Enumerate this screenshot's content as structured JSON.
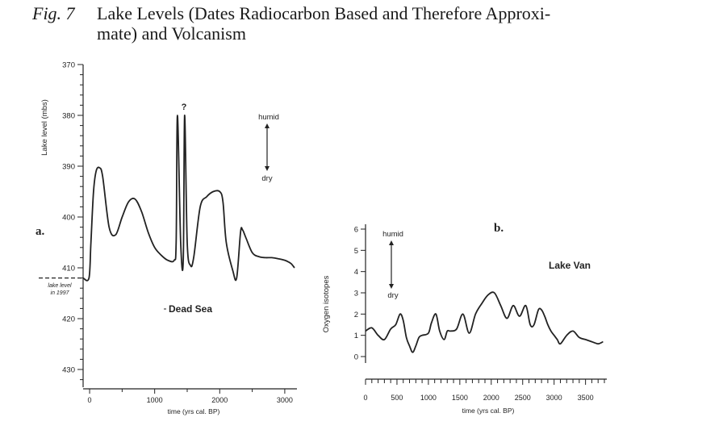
{
  "caption": {
    "figure_label": "Fig. 7",
    "title_line1": "Lake Levels (Dates Radiocarbon Based and Therefore Approxi-",
    "title_line2": "mate) and Volcanism"
  },
  "chart_data": [
    {
      "type": "line",
      "panel_label": "a.",
      "series_name": "Dead Sea",
      "xlabel": "time (yrs cal. BP)",
      "ylabel": "Lake level (mbs)",
      "xlim": [
        -100,
        3150
      ],
      "ylim": [
        370,
        431
      ],
      "y_inverted": true,
      "x_ticks": [
        "0",
        "1000",
        "2000",
        "3000"
      ],
      "y_ticks": [
        "370",
        "380",
        "390",
        "400",
        "410",
        "420",
        "430"
      ],
      "reference_line": {
        "label_line1": "lake level",
        "label_line2": "in 1997",
        "y": 412
      },
      "annotations": {
        "question": "?",
        "humid": "humid",
        "dry": "dry"
      },
      "x": [
        -100,
        -10,
        20,
        60,
        100,
        150,
        200,
        300,
        400,
        500,
        600,
        700,
        800,
        900,
        1000,
        1100,
        1200,
        1300,
        1330,
        1350,
        1400,
        1440,
        1460,
        1500,
        1550,
        1600,
        1700,
        1800,
        1900,
        2000,
        2050,
        2100,
        2200,
        2260,
        2320,
        2350,
        2400,
        2500,
        2600,
        2700,
        2800,
        2900,
        3000,
        3050,
        3100,
        3150
      ],
      "y": [
        412,
        412,
        405,
        395,
        391,
        390.3,
        392,
        402,
        403.5,
        400,
        397,
        396.5,
        399,
        403,
        406,
        407.5,
        408.5,
        408.5,
        405,
        380,
        405,
        408.5,
        380,
        405,
        409.5,
        408,
        398,
        396,
        395,
        395,
        397,
        405,
        410.5,
        412,
        403,
        402.5,
        404,
        407,
        407.8,
        408,
        408,
        408.2,
        408.5,
        408.8,
        409.2,
        410
      ]
    },
    {
      "type": "line",
      "panel_label": "b.",
      "series_name": "Lake Van",
      "xlabel": "time (yrs cal. BP)",
      "ylabel": "Oxygen isotopes",
      "xlim": [
        0,
        3800
      ],
      "ylim": [
        -1,
        6.2
      ],
      "x_ticks": [
        "0",
        "500",
        "1000",
        "1500",
        "2000",
        "2500",
        "3000",
        "3500"
      ],
      "y_ticks": [
        "0",
        "1",
        "2",
        "3",
        "4",
        "5",
        "6"
      ],
      "annotations": {
        "humid": "humid",
        "dry": "dry"
      },
      "x": [
        0,
        100,
        200,
        300,
        400,
        480,
        550,
        600,
        650,
        700,
        750,
        800,
        850,
        900,
        1000,
        1050,
        1120,
        1180,
        1250,
        1300,
        1350,
        1450,
        1550,
        1650,
        1750,
        1850,
        1950,
        2050,
        2150,
        2250,
        2350,
        2450,
        2550,
        2620,
        2680,
        2750,
        2800,
        2850,
        2900,
        2950,
        3000,
        3050,
        3100,
        3200,
        3300,
        3400,
        3500,
        3600,
        3700,
        3780
      ],
      "y": [
        1.2,
        1.35,
        1.0,
        0.8,
        1.3,
        1.5,
        2.0,
        1.7,
        0.9,
        0.5,
        0.2,
        0.5,
        0.9,
        1.0,
        1.1,
        1.6,
        2.0,
        1.2,
        0.8,
        1.2,
        1.2,
        1.3,
        2.0,
        1.1,
        2.0,
        2.5,
        2.9,
        3.0,
        2.4,
        1.8,
        2.4,
        1.9,
        2.4,
        1.5,
        1.5,
        2.2,
        2.2,
        1.9,
        1.5,
        1.2,
        1.0,
        0.8,
        0.6,
        1.0,
        1.2,
        0.9,
        0.8,
        0.7,
        0.6,
        0.7
      ]
    }
  ]
}
